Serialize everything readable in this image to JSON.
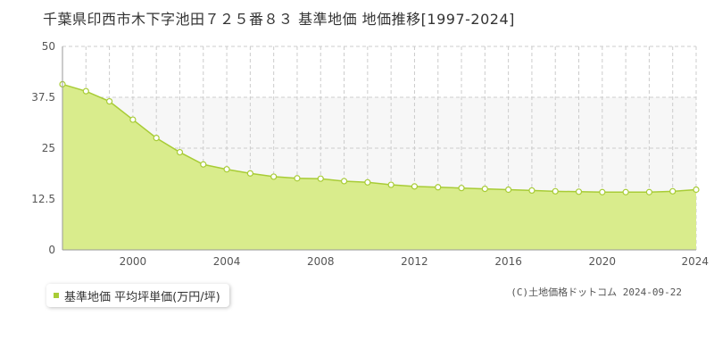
{
  "chart_data": {
    "type": "area",
    "title": "千葉県印西市木下字池田７２５番８３ 基準地価 地価推移[1997-2024]",
    "legend": {
      "label": "基準地価 平均坪単価(万円/坪)",
      "placement": "bottom-left"
    },
    "series": [
      {
        "name": "基準地価 平均坪単価(万円/坪)",
        "color": "#a8cc36",
        "fill": "#d9ec8c",
        "x": [
          1997,
          1998,
          1999,
          2000,
          2001,
          2002,
          2003,
          2004,
          2005,
          2006,
          2007,
          2008,
          2009,
          2010,
          2011,
          2012,
          2013,
          2014,
          2015,
          2016,
          2017,
          2018,
          2019,
          2020,
          2021,
          2022,
          2023,
          2024
        ],
        "values": [
          40.7,
          39.0,
          36.5,
          32.0,
          27.5,
          24.0,
          21.0,
          19.8,
          18.8,
          18.0,
          17.6,
          17.5,
          16.9,
          16.6,
          16.0,
          15.6,
          15.4,
          15.2,
          15.0,
          14.8,
          14.6,
          14.4,
          14.3,
          14.2,
          14.2,
          14.2,
          14.4,
          14.8
        ]
      }
    ],
    "xlim": [
      1997,
      2024
    ],
    "ylim": [
      0,
      50
    ],
    "x_ticks": [
      2000,
      2004,
      2008,
      2012,
      2016,
      2020,
      2024
    ],
    "y_ticks": [
      0,
      12.5,
      25,
      37.5,
      50
    ],
    "y_tick_labels": [
      "0",
      "12.5",
      "25",
      "37.5",
      "50"
    ],
    "grid": true,
    "source": "(C)土地価格ドットコム 2024-09-22"
  }
}
